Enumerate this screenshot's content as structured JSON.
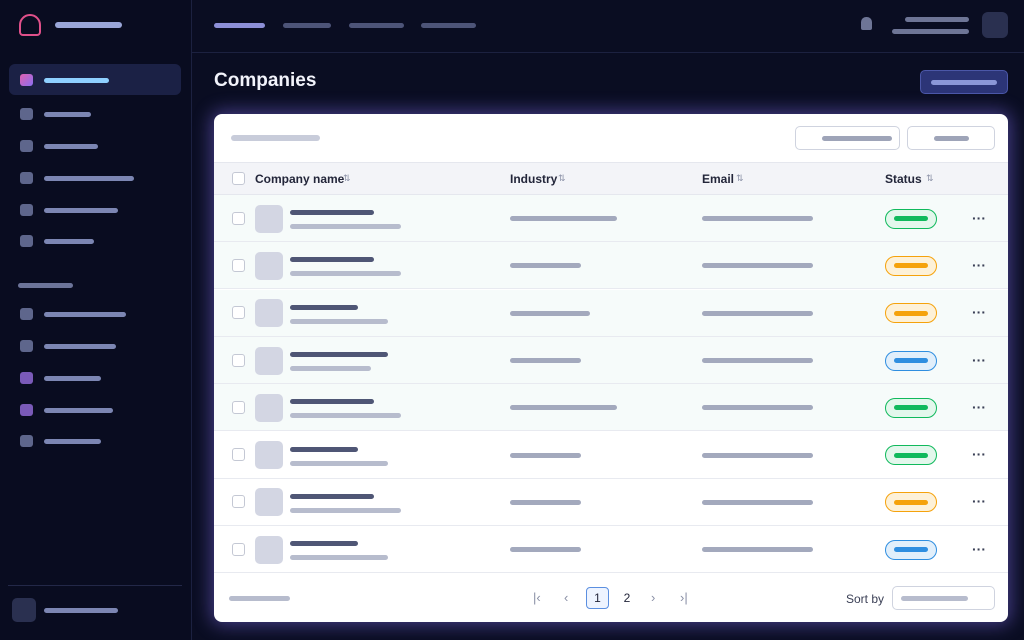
{
  "header": {
    "title": "Companies"
  },
  "table": {
    "columns": [
      "Company name",
      "Industry",
      "Email",
      "Status"
    ]
  },
  "footer": {
    "pages": [
      "1",
      "2"
    ],
    "sort_label": "Sort by"
  }
}
